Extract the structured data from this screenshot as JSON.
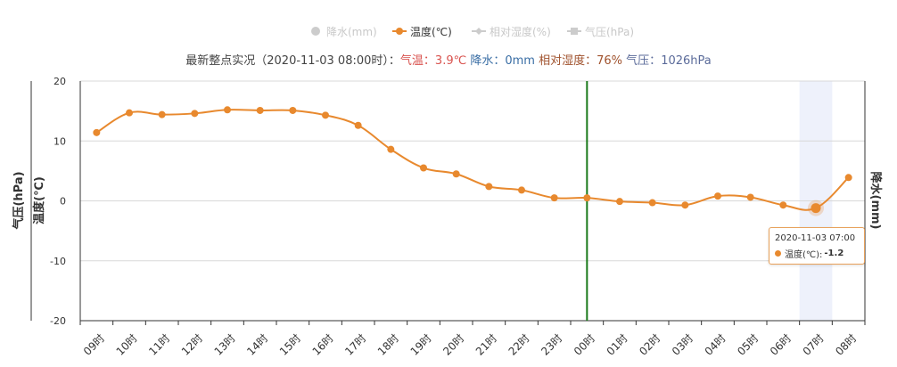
{
  "legend": [
    {
      "label": "降水(mm)",
      "active": false,
      "marker": "circle"
    },
    {
      "label": "温度(℃)",
      "active": true,
      "marker": "line-circle",
      "color": "#e8892e"
    },
    {
      "label": "相对湿度(%)",
      "active": false,
      "marker": "line-diamond"
    },
    {
      "label": "气压(hPa)",
      "active": false,
      "marker": "square"
    }
  ],
  "observation": {
    "prefix": "最新整点实况（2020-11-03 08:00时）：",
    "temp_label": "气温：",
    "temp_value": "3.9℃",
    "rain_label": "降水：",
    "rain_value": "0mm",
    "humidity_label": "相对湿度：",
    "humidity_value": "76%",
    "pressure_label": "气压：",
    "pressure_value": "1026hPa"
  },
  "tooltip": {
    "time": "2020-11-03 07:00",
    "series_label": "温度(℃):",
    "value": "-1.2"
  },
  "chart_data": {
    "type": "line",
    "categories": [
      "09时",
      "10时",
      "11时",
      "12时",
      "13时",
      "14时",
      "15时",
      "16时",
      "17时",
      "18时",
      "19时",
      "20时",
      "21时",
      "22时",
      "23时",
      "00时",
      "01时",
      "02时",
      "03时",
      "04时",
      "05时",
      "06时",
      "07时",
      "08时"
    ],
    "series": [
      {
        "name": "温度(℃)",
        "color": "#e8892e",
        "values": [
          11.4,
          14.7,
          14.4,
          14.6,
          15.2,
          15.1,
          15.1,
          14.3,
          12.6,
          8.6,
          5.5,
          4.5,
          2.4,
          1.8,
          0.5,
          0.5,
          -0.1,
          -0.3,
          -0.7,
          0.8,
          0.6,
          -0.7,
          -1.2,
          3.9
        ]
      }
    ],
    "left_axis_labels": [
      "气压(hPa)",
      "温度(℃)"
    ],
    "right_axis_label": "降水(mm)",
    "ylim": [
      -20,
      20
    ],
    "yticks": [
      -20,
      -10,
      0,
      10,
      20
    ],
    "grid": true,
    "legend_position": "top-center",
    "current_time_marker": "00时",
    "current_time_marker_color": "#1a7a1a",
    "highlighted_category": "07时"
  }
}
